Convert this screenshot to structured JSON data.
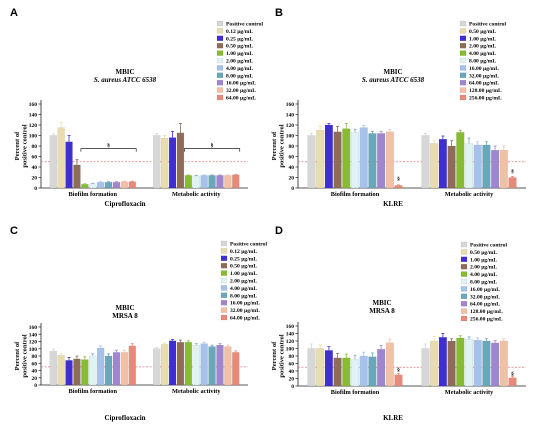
{
  "legend_colors": [
    "#d7d7d7",
    "#e9dcae",
    "#3f2ed0",
    "#8f6c58",
    "#86bb33",
    "#dff3f5",
    "#a6c2ea",
    "#69a7bb",
    "#a086cf",
    "#f2c0a6",
    "#e88a7a",
    "#fff21a"
  ],
  "chart_data": [
    {
      "type": "bar",
      "panel": "A",
      "title": "MBIC",
      "subtitle": "S. aureus ATCC 6538",
      "ylabel": "Percent of positive control",
      "xlabel": "Ciprofloxacin",
      "ylim": [
        0,
        160
      ],
      "yticks": [
        0,
        20,
        40,
        60,
        80,
        100,
        120,
        140,
        160
      ],
      "threshold": 50,
      "categories": [
        "Biofilm formation",
        "Metabolic activity"
      ],
      "series": [
        {
          "name": "Positive control",
          "values": [
            100,
            100
          ],
          "errors": [
            3,
            4
          ]
        },
        {
          "name": "0.12 µg/mL",
          "values": [
            115,
            95
          ],
          "errors": [
            10,
            5
          ]
        },
        {
          "name": "0.25 µg/mL",
          "values": [
            88,
            96
          ],
          "errors": [
            12,
            12
          ]
        },
        {
          "name": "0.50 µg/mL",
          "values": [
            44,
            105
          ],
          "errors": [
            10,
            18
          ]
        },
        {
          "name": "1.00 µg/mL",
          "values": [
            7,
            24
          ],
          "errors": [
            1,
            1
          ]
        },
        {
          "name": "2.00 µg/mL",
          "values": [
            8,
            23
          ],
          "errors": [
            1,
            1
          ]
        },
        {
          "name": "4.00 µg/mL",
          "values": [
            11,
            24
          ],
          "errors": [
            1,
            1
          ]
        },
        {
          "name": "8.00 µg/mL",
          "values": [
            11,
            24
          ],
          "errors": [
            1,
            1
          ]
        },
        {
          "name": "16.00 µg/mL",
          "values": [
            11,
            24
          ],
          "errors": [
            1,
            1
          ]
        },
        {
          "name": "32.00 µg/mL",
          "values": [
            12,
            24
          ],
          "errors": [
            1,
            1
          ]
        },
        {
          "name": "64.00 µg/mL",
          "values": [
            12,
            25
          ],
          "errors": [
            1,
            1
          ]
        }
      ],
      "annotations": [
        {
          "text": "§",
          "category": 0,
          "from_series": 4,
          "to_series": 10,
          "level": 75
        },
        {
          "text": "§",
          "category": 1,
          "from_series": 4,
          "to_series": 10,
          "level": 75
        }
      ]
    },
    {
      "type": "bar",
      "panel": "B",
      "title": "MBIC",
      "subtitle": "S. aureus ATCC 6538",
      "ylabel": "Percent of positive control",
      "xlabel": "KLRE",
      "ylim": [
        0,
        160
      ],
      "yticks": [
        0,
        20,
        40,
        60,
        80,
        100,
        120,
        140,
        160
      ],
      "threshold": 50,
      "categories": [
        "Biofilm formation",
        "Metabolic activity"
      ],
      "series": [
        {
          "name": "Positive control",
          "values": [
            100,
            100
          ],
          "errors": [
            4,
            4
          ]
        },
        {
          "name": "0.50 µg/mL",
          "values": [
            110,
            85
          ],
          "errors": [
            8,
            6
          ]
        },
        {
          "name": "1.00 µg/mL",
          "values": [
            120,
            93
          ],
          "errors": [
            3,
            6
          ]
        },
        {
          "name": "2.00 µg/mL",
          "values": [
            107,
            80
          ],
          "errors": [
            10,
            10
          ]
        },
        {
          "name": "4.00 µg/mL",
          "values": [
            113,
            106
          ],
          "errors": [
            10,
            4
          ]
        },
        {
          "name": "8.00 µg/mL",
          "values": [
            106,
            85
          ],
          "errors": [
            6,
            10
          ]
        },
        {
          "name": "16.00 µg/mL",
          "values": [
            115,
            82
          ],
          "errors": [
            4,
            6
          ]
        },
        {
          "name": "32.00 µg/mL",
          "values": [
            104,
            82
          ],
          "errors": [
            4,
            6
          ]
        },
        {
          "name": "64.00 µg/mL",
          "values": [
            104,
            72
          ],
          "errors": [
            4,
            8
          ]
        },
        {
          "name": "128.00 µg/mL",
          "values": [
            107,
            72
          ],
          "errors": [
            4,
            8
          ]
        },
        {
          "name": "256.00 µg/mL",
          "values": [
            5,
            20
          ],
          "errors": [
            1,
            2
          ]
        }
      ],
      "annotations": [
        {
          "text": "§",
          "category": 0,
          "series": 10,
          "level": 15
        },
        {
          "text": "§",
          "category": 1,
          "series": 10,
          "level": 30
        }
      ]
    },
    {
      "type": "bar",
      "panel": "C",
      "title": "MBIC",
      "subtitle": "MRSA 8",
      "ylabel": "Percent of positive control",
      "xlabel": "Ciprofloxacin",
      "ylim": [
        0,
        160
      ],
      "yticks": [
        0,
        20,
        40,
        60,
        80,
        100,
        120,
        140,
        160
      ],
      "threshold": 50,
      "categories": [
        "Biofilm formation",
        "Metabolic activity"
      ],
      "series": [
        {
          "name": "Positive control",
          "values": [
            93,
            100
          ],
          "errors": [
            6,
            4
          ]
        },
        {
          "name": "0.12 µg/mL",
          "values": [
            82,
            112
          ],
          "errors": [
            6,
            4
          ]
        },
        {
          "name": "0.25 µg/mL",
          "values": [
            68,
            122
          ],
          "errors": [
            8,
            4
          ]
        },
        {
          "name": "0.50 µg/mL",
          "values": [
            72,
            118
          ],
          "errors": [
            8,
            6
          ]
        },
        {
          "name": "1.00 µg/mL",
          "values": [
            70,
            118
          ],
          "errors": [
            8,
            4
          ]
        },
        {
          "name": "2.00 µg/mL",
          "values": [
            80,
            110
          ],
          "errors": [
            6,
            4
          ]
        },
        {
          "name": "4.00 µg/mL",
          "values": [
            102,
            114
          ],
          "errors": [
            6,
            4
          ]
        },
        {
          "name": "8.00 µg/mL",
          "values": [
            80,
            106
          ],
          "errors": [
            6,
            4
          ]
        },
        {
          "name": "16.00 µg/mL",
          "values": [
            90,
            110
          ],
          "errors": [
            6,
            4
          ]
        },
        {
          "name": "32.00 µg/mL",
          "values": [
            90,
            106
          ],
          "errors": [
            6,
            4
          ]
        },
        {
          "name": "64.00 µg/mL",
          "values": [
            108,
            90
          ],
          "errors": [
            6,
            4
          ]
        }
      ],
      "annotations": []
    },
    {
      "type": "bar",
      "panel": "D",
      "title": "MBIC",
      "subtitle": "MRSA 8",
      "ylabel": "Percent of positive control",
      "xlabel": "KLRE",
      "ylim": [
        0,
        160
      ],
      "yticks": [
        0,
        20,
        40,
        60,
        80,
        100,
        120,
        140,
        160
      ],
      "threshold": 50,
      "categories": [
        "Biofilm formation",
        "Metabolic activity"
      ],
      "series": [
        {
          "name": "Positive control",
          "values": [
            100,
            100
          ],
          "errors": [
            12,
            12
          ]
        },
        {
          "name": "0.50 µg/mL",
          "values": [
            100,
            120
          ],
          "errors": [
            10,
            12
          ]
        },
        {
          "name": "1.00 µg/mL",
          "values": [
            95,
            130
          ],
          "errors": [
            10,
            10
          ]
        },
        {
          "name": "2.00 µg/mL",
          "values": [
            75,
            120
          ],
          "errors": [
            12,
            6
          ]
        },
        {
          "name": "4.00 µg/mL",
          "values": [
            75,
            128
          ],
          "errors": [
            10,
            6
          ]
        },
        {
          "name": "8.00 µg/mL",
          "values": [
            72,
            125
          ],
          "errors": [
            10,
            6
          ]
        },
        {
          "name": "16.00 µg/mL",
          "values": [
            80,
            122
          ],
          "errors": [
            10,
            6
          ]
        },
        {
          "name": "32.00 µg/mL",
          "values": [
            78,
            120
          ],
          "errors": [
            10,
            6
          ]
        },
        {
          "name": "64.00 µg/mL",
          "values": [
            98,
            115
          ],
          "errors": [
            10,
            6
          ]
        },
        {
          "name": "128.00 µg/mL",
          "values": [
            115,
            120
          ],
          "errors": [
            10,
            6
          ]
        },
        {
          "name": "256.00 µg/mL",
          "values": [
            30,
            22
          ],
          "errors": [
            4,
            4
          ]
        }
      ],
      "annotations": [
        {
          "text": "§",
          "category": 0,
          "series": 10,
          "level": 40
        },
        {
          "text": "§",
          "category": 1,
          "series": 10,
          "level": 30
        }
      ]
    }
  ]
}
